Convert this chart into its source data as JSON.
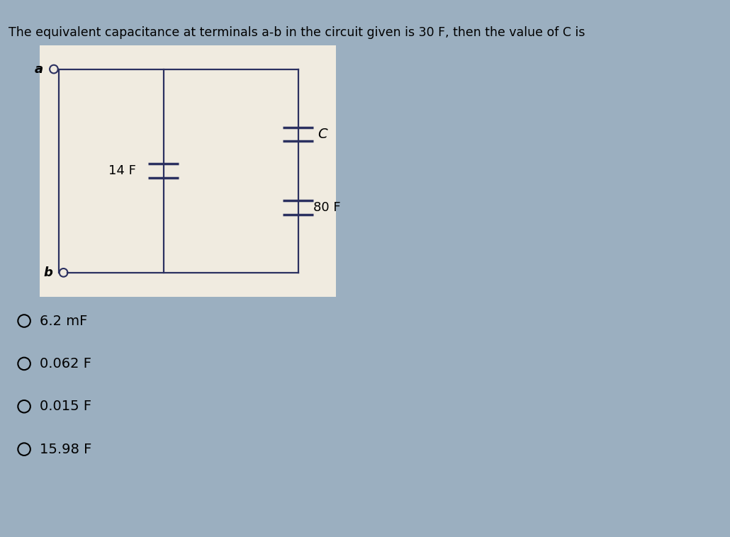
{
  "title": "The equivalent capacitance at terminals a-b in the circuit given is 30 F, then the value of C is",
  "title_fontsize": 12.5,
  "bg_color": "#9bafc0",
  "circuit_bg": "#f0ebe0",
  "options": [
    "6.2 mF",
    "0.062 F",
    "0.015 F",
    "15.98 F"
  ],
  "options_fontsize": 14,
  "label_14F": "14 F",
  "label_80F": "80 F",
  "label_C": "C",
  "label_a": "a",
  "label_b": "b",
  "wire_color": "#2b3060",
  "wire_lw": 1.6
}
